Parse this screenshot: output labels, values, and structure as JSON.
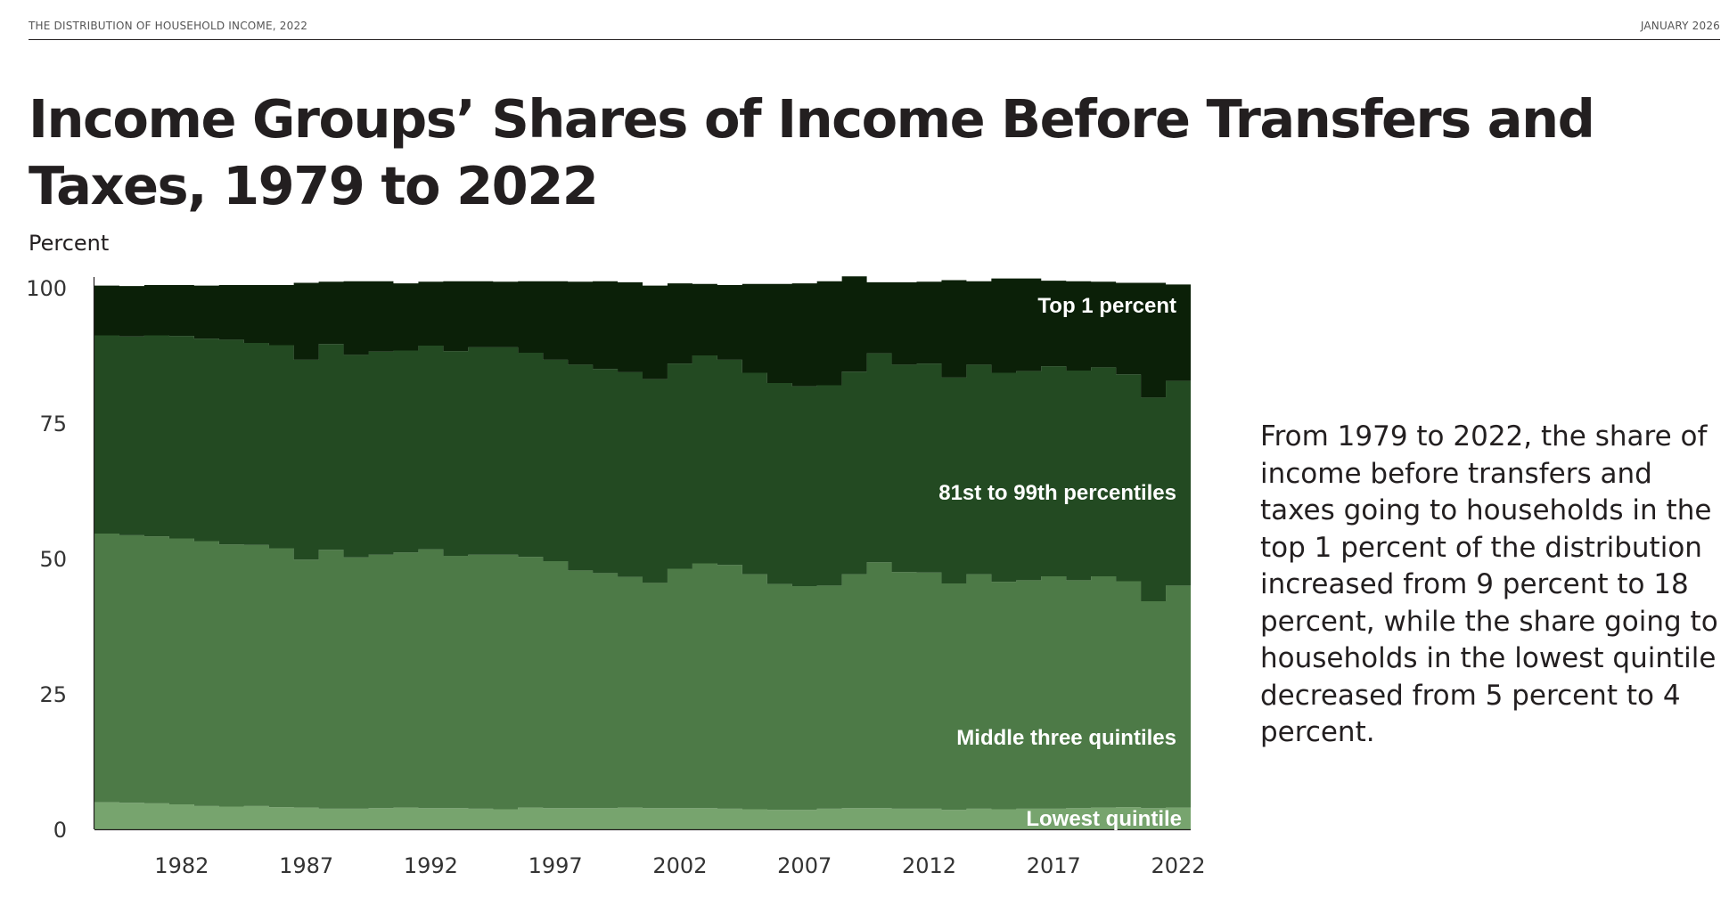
{
  "header": {
    "left": "THE DISTRIBUTION OF HOUSEHOLD INCOME, 2022",
    "right": "JANUARY 2026"
  },
  "annotation": "From 1979 to 2022, the share of income before transfers and taxes going to households in the top 1 percent of the distribution increased from 9 percent to 18 percent, while the share going to households in the lowest quintile decreased from 5 percent to 4 percent.",
  "chart_data": {
    "type": "area",
    "stacked": true,
    "title": "Income Groups’ Shares of Income Before Transfers and Taxes, 1979 to 2022",
    "ylabel": "Percent",
    "xlabel": "",
    "ylim": [
      0,
      100
    ],
    "yticks": [
      0,
      25,
      50,
      75,
      100
    ],
    "xticks": [
      1982,
      1987,
      1992,
      1997,
      2002,
      2007,
      2012,
      2017,
      2022
    ],
    "grid": false,
    "legend": "inline labels",
    "x": [
      1979,
      1980,
      1981,
      1982,
      1983,
      1984,
      1985,
      1986,
      1987,
      1988,
      1989,
      1990,
      1991,
      1992,
      1993,
      1994,
      1995,
      1996,
      1997,
      1998,
      1999,
      2000,
      2001,
      2002,
      2003,
      2004,
      2005,
      2006,
      2007,
      2008,
      2009,
      2010,
      2011,
      2012,
      2013,
      2014,
      2015,
      2016,
      2017,
      2018,
      2019,
      2020,
      2021,
      2022
    ],
    "series": [
      {
        "name": "Lowest quintile",
        "color": "#77a46e",
        "values": [
          5.0,
          4.9,
          4.8,
          4.6,
          4.3,
          4.2,
          4.3,
          4.1,
          4.0,
          3.8,
          3.8,
          3.9,
          4.0,
          3.9,
          3.9,
          3.8,
          3.7,
          4.0,
          3.9,
          3.9,
          3.9,
          4.0,
          3.9,
          3.9,
          3.9,
          3.8,
          3.7,
          3.6,
          3.6,
          3.8,
          3.9,
          3.9,
          3.8,
          3.8,
          3.6,
          3.8,
          3.7,
          3.8,
          3.8,
          3.9,
          4.0,
          4.1,
          3.9,
          4.0
        ]
      },
      {
        "name": "Middle three quintiles",
        "color": "#4d7a47",
        "values": [
          49.6,
          49.4,
          49.3,
          49.1,
          48.9,
          48.4,
          48.2,
          47.8,
          45.8,
          47.8,
          46.4,
          46.8,
          47.1,
          47.8,
          46.6,
          46.9,
          47.0,
          46.3,
          45.6,
          43.9,
          43.4,
          42.6,
          41.6,
          44.2,
          45.2,
          45.0,
          43.4,
          41.7,
          41.3,
          41.2,
          43.2,
          45.4,
          43.7,
          43.6,
          41.8,
          43.3,
          42.0,
          42.2,
          42.9,
          42.1,
          42.7,
          41.7,
          38.2,
          41.0
        ]
      },
      {
        "name": "81st to 99th percentiles",
        "color": "#234a22",
        "values": [
          36.6,
          36.7,
          37.1,
          37.4,
          37.4,
          37.8,
          37.3,
          37.5,
          36.9,
          38.0,
          37.4,
          37.5,
          37.3,
          37.6,
          37.8,
          38.3,
          38.3,
          37.7,
          37.2,
          38.0,
          37.7,
          37.8,
          37.6,
          37.9,
          38.4,
          37.9,
          37.2,
          37.1,
          36.9,
          37.0,
          37.4,
          38.6,
          38.3,
          38.6,
          38.0,
          38.7,
          38.6,
          38.6,
          38.8,
          38.7,
          38.6,
          38.2,
          37.6,
          37.8
        ]
      },
      {
        "name": "Top 1 percent",
        "color": "#0b2008",
        "values": [
          9.2,
          9.3,
          9.3,
          9.4,
          9.8,
          10.1,
          10.7,
          11.1,
          14.2,
          11.5,
          13.6,
          13.0,
          12.4,
          11.8,
          12.9,
          12.2,
          12.1,
          13.2,
          14.5,
          15.3,
          16.2,
          16.6,
          17.3,
          14.8,
          13.2,
          13.8,
          16.4,
          18.3,
          19.0,
          19.2,
          17.6,
          13.1,
          15.2,
          15.1,
          18.0,
          15.4,
          17.4,
          17.1,
          15.8,
          16.5,
          15.8,
          16.9,
          21.2,
          17.8
        ]
      }
    ]
  }
}
